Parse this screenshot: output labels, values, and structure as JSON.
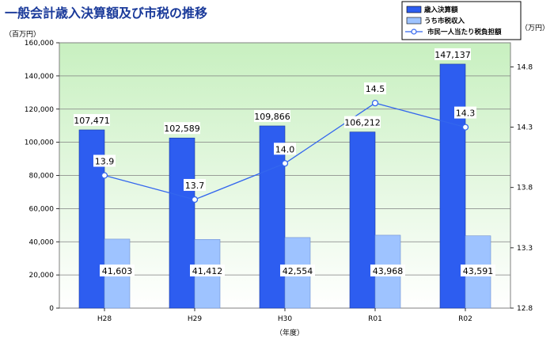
{
  "chart_data": {
    "type": "bar",
    "title": "一般会計歳入決算額及び市税の推移",
    "left_unit": "（百万円）",
    "right_unit": "（万円）",
    "xlabel": "（年度）",
    "categories": [
      "H28",
      "H29",
      "H30",
      "R01",
      "R02"
    ],
    "ylim": [
      0,
      160000
    ],
    "y_ticks": [
      0,
      20000,
      40000,
      60000,
      80000,
      100000,
      120000,
      140000,
      160000
    ],
    "y2lim": [
      12.8,
      15.0
    ],
    "y2_ticks": [
      12.8,
      13.3,
      13.8,
      14.3,
      14.8
    ],
    "series": [
      {
        "name": "歳入決算額",
        "kind": "bar",
        "axis": "left",
        "color": "#2d5df0",
        "values": [
          107471,
          102589,
          109866,
          106212,
          147137
        ],
        "labels": [
          "107,471",
          "102,589",
          "109,866",
          "106,212",
          "147,137"
        ]
      },
      {
        "name": "うち市税収入",
        "kind": "bar",
        "axis": "left",
        "color": "#9ec3ff",
        "values": [
          41603,
          41412,
          42554,
          43968,
          43591
        ],
        "labels": [
          "41,603",
          "41,412",
          "42,554",
          "43,968",
          "43,591"
        ]
      },
      {
        "name": "市民一人当たり税負担額",
        "kind": "line",
        "axis": "right",
        "color": "#3366ee",
        "values": [
          13.9,
          13.7,
          14.0,
          14.5,
          14.3
        ],
        "labels": [
          "13.9",
          "13.7",
          "14.0",
          "14.5",
          "14.3"
        ]
      }
    ],
    "legend_position": "top-right",
    "background_gradient": [
      "#c8f0c0",
      "#ffffff"
    ]
  }
}
